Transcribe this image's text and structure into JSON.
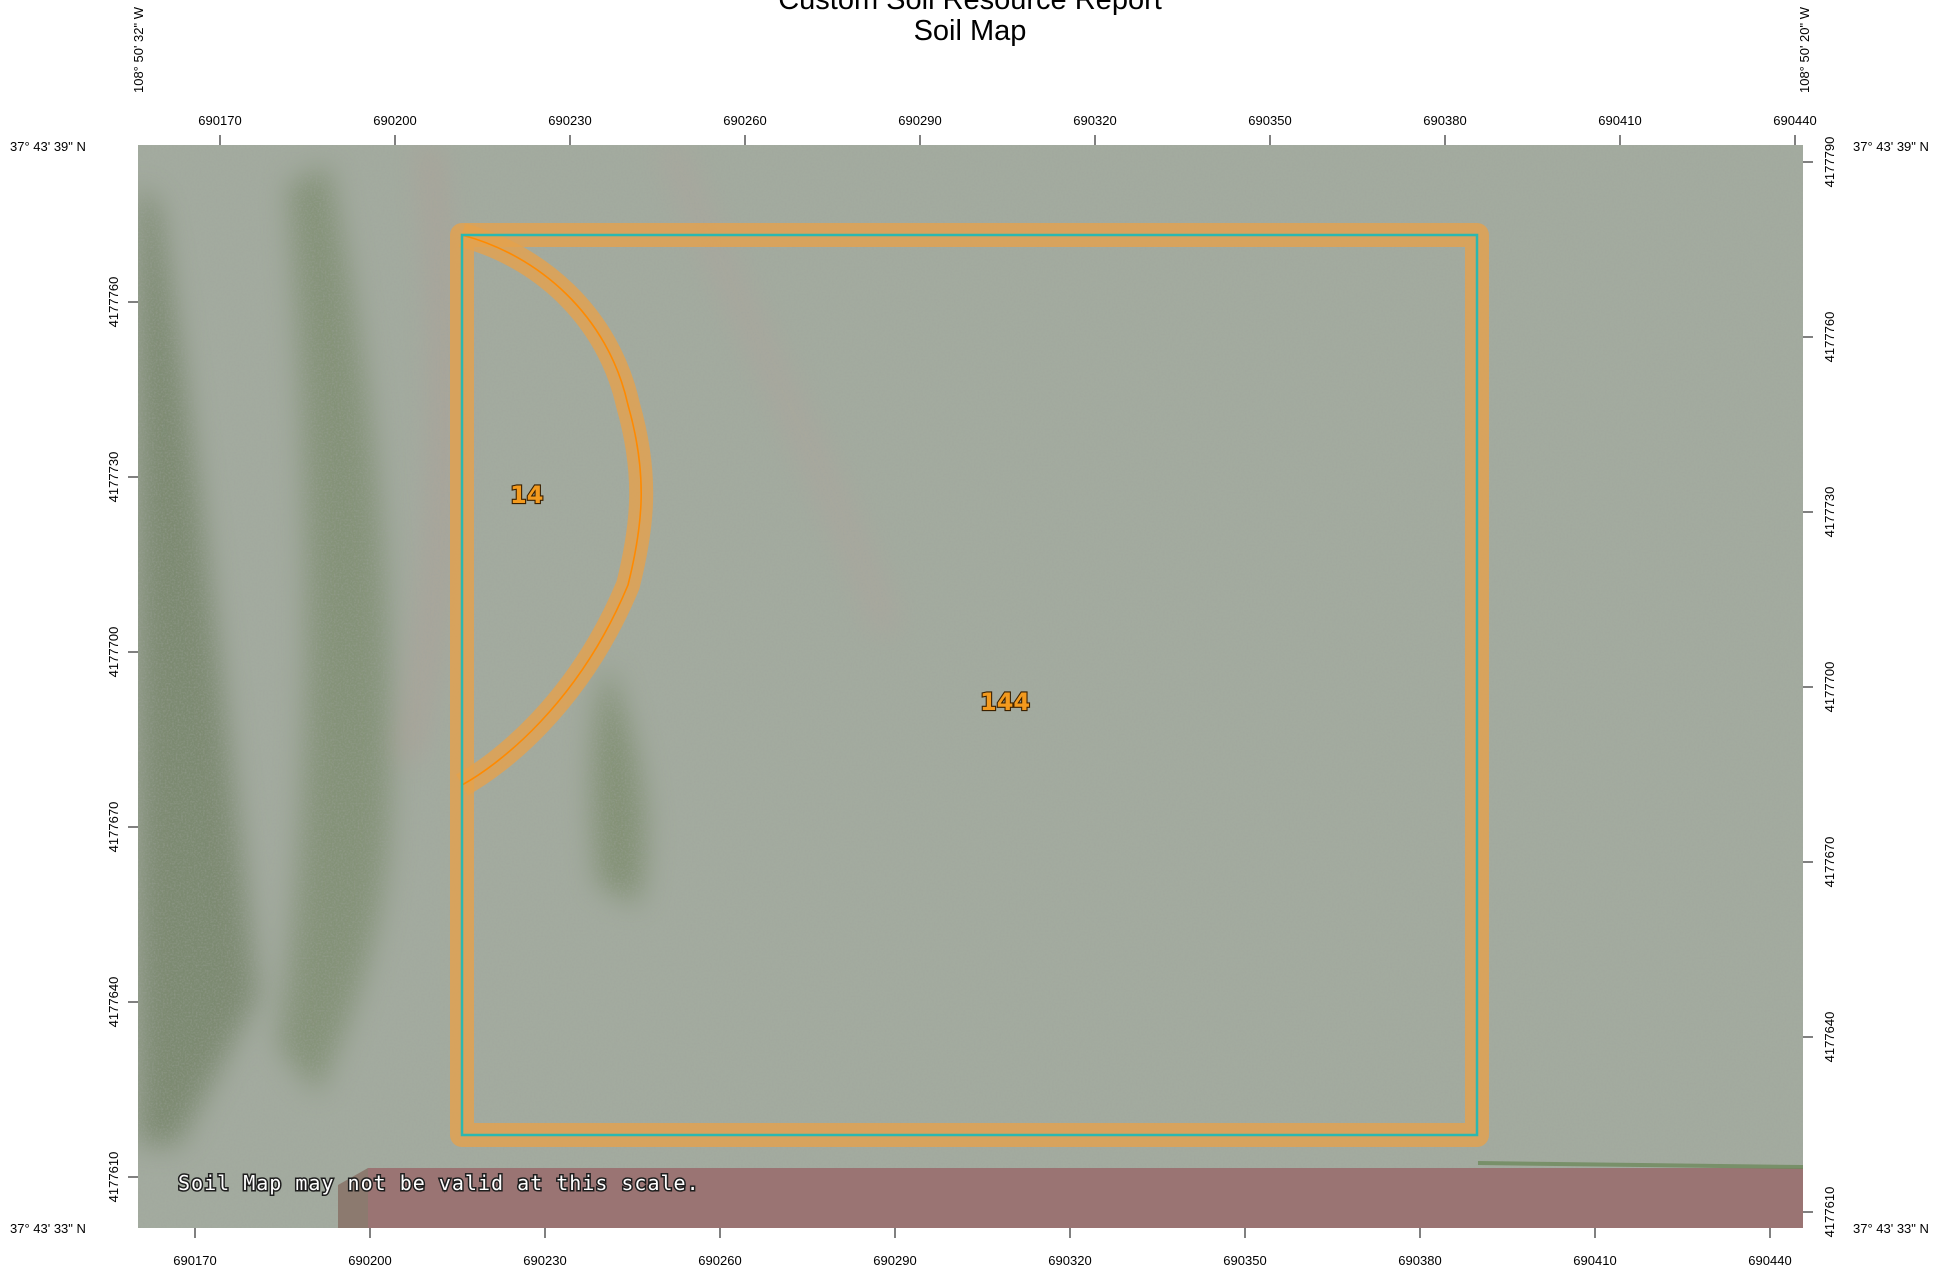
{
  "header": {
    "title": "Custom Soil Resource Report",
    "subtitle": "Soil Map"
  },
  "coordinates": {
    "longitude_west": "108° 50' 32\" W",
    "longitude_east": "108° 50' 20\" W",
    "latitude_north": "37° 43' 39\" N",
    "latitude_south": "37° 43' 33\" N",
    "easting_top": [
      "690170",
      "690200",
      "690230",
      "690260",
      "690290",
      "690320",
      "690350",
      "690380",
      "690410",
      "690440"
    ],
    "easting_bottom": [
      "690170",
      "690200",
      "690230",
      "690260",
      "690290",
      "690320",
      "690350",
      "690380",
      "690410",
      "690440"
    ],
    "northing_left": [
      "4177760",
      "4177730",
      "4177700",
      "4177670",
      "4177640",
      "4177610"
    ],
    "northing_right": [
      "4177790",
      "4177760",
      "4177730",
      "4177700",
      "4177670",
      "4177640",
      "4177610"
    ]
  },
  "map": {
    "map_units": [
      {
        "symbol": "14"
      },
      {
        "symbol": "144"
      }
    ],
    "scale_note": "Soil Map may not be valid at this scale.",
    "colors": {
      "imagery_base": "#a3ab9f",
      "vegetation": "#6f7f62",
      "field": "#9a7473",
      "aoi_boundary": "#2bb8b0",
      "soil_polygon_band": "#e5a14c",
      "soil_line": "#ff8a00",
      "label_fill": "#f39a1e"
    }
  }
}
